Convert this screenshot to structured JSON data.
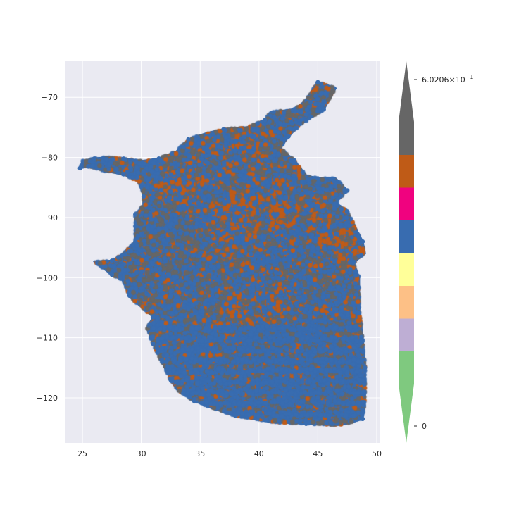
{
  "chart_data": {
    "type": "scatter",
    "title": "",
    "xlabel": "",
    "ylabel": "",
    "xlim": [
      23.5,
      50.3
    ],
    "ylim": [
      -127.5,
      -64.0
    ],
    "x_ticks": [
      25,
      30,
      35,
      40,
      45,
      50
    ],
    "x_tick_labels": [
      "25",
      "30",
      "35",
      "40",
      "45",
      "50"
    ],
    "y_ticks": [
      -70,
      -80,
      -90,
      -100,
      -110,
      -120
    ],
    "y_tick_labels": [
      "−70",
      "−80",
      "−90",
      "−100",
      "−110",
      "−120"
    ],
    "grid": true,
    "background": "#eaeaf2",
    "categories_colors": [
      "#7fc97f",
      "#beaed4",
      "#fdc086",
      "#ffff99",
      "#386cb0",
      "#f0027f",
      "#bf5b17",
      "#666666"
    ],
    "main_colors": {
      "blue": "#386cb0",
      "orange": "#bf5b17",
      "gray": "#666666"
    },
    "colorbar": {
      "min_label": "0",
      "max_label_base": "6.0206×10",
      "max_label_exp": "−1",
      "min_value": 0,
      "max_value": 0.60206,
      "extend": "both",
      "colors": [
        "#7fc97f",
        "#beaed4",
        "#fdc086",
        "#ffff99",
        "#386cb0",
        "#f0027f",
        "#bf5b17",
        "#666666"
      ]
    },
    "region_boundary": [
      [
        24.8,
        -81.8
      ],
      [
        25.0,
        -80.6
      ],
      [
        26.0,
        -80.2
      ],
      [
        27.0,
        -80.0
      ],
      [
        28.5,
        -80.2
      ],
      [
        30.0,
        -80.6
      ],
      [
        31.5,
        -80.2
      ],
      [
        33.0,
        -79.0
      ],
      [
        34.0,
        -77.0
      ],
      [
        35.5,
        -76.0
      ],
      [
        37.0,
        -75.3
      ],
      [
        39.0,
        -75.0
      ],
      [
        40.5,
        -73.8
      ],
      [
        41.0,
        -72.5
      ],
      [
        43.0,
        -72.0
      ],
      [
        44.0,
        -70.5
      ],
      [
        45.0,
        -67.5
      ],
      [
        46.5,
        -68.5
      ],
      [
        45.5,
        -72.0
      ],
      [
        43.5,
        -74.5
      ],
      [
        42.5,
        -76.5
      ],
      [
        41.8,
        -78.5
      ],
      [
        43.0,
        -80.5
      ],
      [
        44.0,
        -83.0
      ],
      [
        45.0,
        -83.5
      ],
      [
        46.5,
        -83.5
      ],
      [
        47.5,
        -85.5
      ],
      [
        46.5,
        -87.5
      ],
      [
        47.5,
        -89.0
      ],
      [
        48.0,
        -91.0
      ],
      [
        48.8,
        -94.0
      ],
      [
        49.0,
        -96.0
      ],
      [
        48.0,
        -97.5
      ],
      [
        48.5,
        -100.0
      ],
      [
        48.5,
        -105.0
      ],
      [
        48.8,
        -110.0
      ],
      [
        49.0,
        -115.0
      ],
      [
        49.0,
        -120.0
      ],
      [
        48.8,
        -123.5
      ],
      [
        47.0,
        -124.5
      ],
      [
        44.0,
        -124.3
      ],
      [
        41.0,
        -124.0
      ],
      [
        38.0,
        -123.0
      ],
      [
        36.0,
        -121.7
      ],
      [
        34.5,
        -120.5
      ],
      [
        33.0,
        -118.5
      ],
      [
        32.5,
        -117.0
      ],
      [
        31.5,
        -113.0
      ],
      [
        31.0,
        -111.0
      ],
      [
        30.5,
        -108.5
      ],
      [
        31.0,
        -106.5
      ],
      [
        29.5,
        -104.0
      ],
      [
        29.0,
        -103.0
      ],
      [
        28.5,
        -100.5
      ],
      [
        27.5,
        -99.5
      ],
      [
        26.0,
        -97.3
      ],
      [
        27.5,
        -97.2
      ],
      [
        28.5,
        -96.0
      ],
      [
        29.5,
        -94.0
      ],
      [
        29.5,
        -91.0
      ],
      [
        29.5,
        -89.5
      ],
      [
        30.2,
        -88.0
      ],
      [
        30.2,
        -86.5
      ],
      [
        29.8,
        -84.0
      ],
      [
        28.5,
        -82.8
      ],
      [
        27.0,
        -82.3
      ],
      [
        25.5,
        -81.5
      ],
      [
        24.8,
        -81.8
      ]
    ],
    "point_count_approx": 70000,
    "orange_hotspots": [
      [
        42.0,
        -88.5
      ],
      [
        41.5,
        -87.5
      ],
      [
        39.0,
        -104.8
      ],
      [
        40.5,
        -104.0
      ],
      [
        46.0,
        -93.0
      ],
      [
        47.5,
        -95.5
      ],
      [
        33.5,
        -84.5
      ],
      [
        38.5,
        -89.0
      ],
      [
        37.5,
        -93.0
      ],
      [
        38.5,
        -77.0
      ]
    ]
  }
}
